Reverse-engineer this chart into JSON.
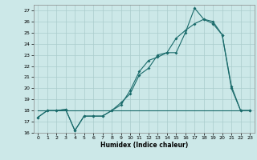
{
  "xlabel": "Humidex (Indice chaleur)",
  "xlim": [
    -0.5,
    23.5
  ],
  "ylim": [
    16,
    27.5
  ],
  "yticks": [
    16,
    17,
    18,
    19,
    20,
    21,
    22,
    23,
    24,
    25,
    26,
    27
  ],
  "xticks": [
    0,
    1,
    2,
    3,
    4,
    5,
    6,
    7,
    8,
    9,
    10,
    11,
    12,
    13,
    14,
    15,
    16,
    17,
    18,
    19,
    20,
    21,
    22,
    23
  ],
  "bg_color": "#cce8e8",
  "grid_color": "#aacccc",
  "line_color": "#1a6b6b",
  "line1_x": [
    0,
    1,
    2,
    3,
    4,
    5,
    6,
    7,
    8,
    9,
    10,
    11,
    12,
    13,
    14,
    15,
    16,
    17,
    18,
    19,
    20,
    21,
    22,
    23
  ],
  "line1_y": [
    17.4,
    18.0,
    18.0,
    18.1,
    16.2,
    17.5,
    17.5,
    17.5,
    18.0,
    18.7,
    19.5,
    21.2,
    21.8,
    23.0,
    23.2,
    23.2,
    25.0,
    27.2,
    26.2,
    25.8,
    24.8,
    20.2,
    18.0,
    18.0
  ],
  "line2_x": [
    0,
    1,
    2,
    3,
    4,
    5,
    6,
    7,
    8,
    9,
    10,
    11,
    12,
    13,
    14,
    15,
    16,
    17,
    18,
    19,
    20,
    21,
    22,
    23
  ],
  "line2_y": [
    17.4,
    18.0,
    18.0,
    18.1,
    16.2,
    17.5,
    17.5,
    17.5,
    18.0,
    18.5,
    19.8,
    21.5,
    22.5,
    22.8,
    23.2,
    24.5,
    25.2,
    25.8,
    26.2,
    26.0,
    24.8,
    20.0,
    18.0,
    18.0
  ],
  "line3_x": [
    0,
    23
  ],
  "line3_y": [
    18.0,
    18.0
  ]
}
